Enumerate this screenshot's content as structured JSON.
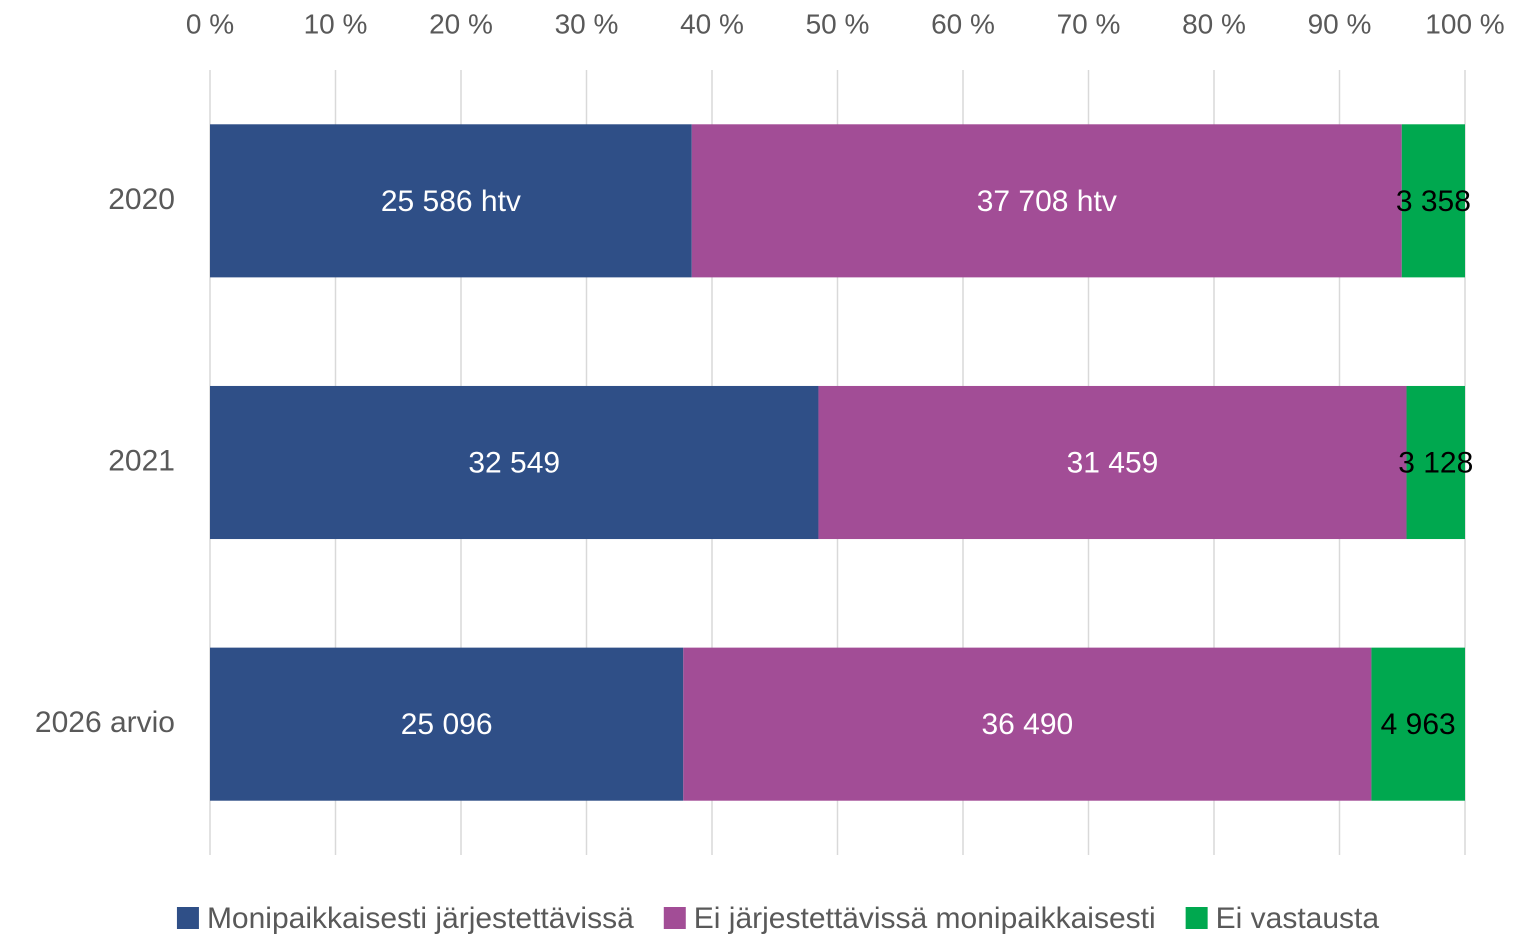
{
  "chart_data": {
    "type": "bar",
    "orientation": "horizontal",
    "stacking": "percent",
    "categories": [
      "2020",
      "2021",
      "2026 arvio"
    ],
    "series": [
      {
        "name": "Monipaikkaisesti järjestettävissä",
        "color": "#2f4f87",
        "label_color": "#ffffff",
        "values": [
          25586,
          32549,
          25096
        ],
        "value_labels": [
          "25 586 htv",
          "32 549",
          "25 096"
        ]
      },
      {
        "name": "Ei järjestettävissä monipaikkaisesti",
        "color": "#a24d96",
        "label_color": "#ffffff",
        "values": [
          37708,
          31459,
          36490
        ],
        "value_labels": [
          "37 708 htv",
          "31 459",
          "36 490"
        ]
      },
      {
        "name": "Ei vastausta",
        "color": "#00a84f",
        "label_color": "#000000",
        "values": [
          3358,
          3128,
          4963
        ],
        "value_labels": [
          "3 358",
          "3 128",
          "4 963"
        ]
      }
    ],
    "xlim": [
      0,
      100
    ],
    "xticks": [
      {
        "value": 0,
        "label": "0 %"
      },
      {
        "value": 10,
        "label": "10 %"
      },
      {
        "value": 20,
        "label": "20 %"
      },
      {
        "value": 30,
        "label": "30 %"
      },
      {
        "value": 40,
        "label": "40 %"
      },
      {
        "value": 50,
        "label": "50 %"
      },
      {
        "value": 60,
        "label": "60 %"
      },
      {
        "value": 70,
        "label": "70 %"
      },
      {
        "value": 80,
        "label": "80 %"
      },
      {
        "value": 90,
        "label": "90 %"
      },
      {
        "value": 100,
        "label": "100 %"
      }
    ],
    "grid": true,
    "legend": "bottom"
  }
}
